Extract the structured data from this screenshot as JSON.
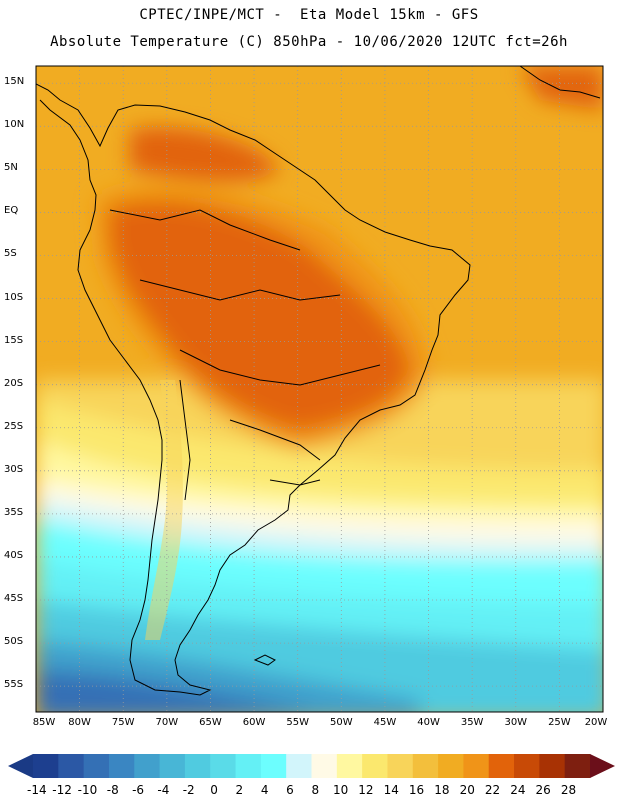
{
  "header": {
    "line1": "CPTEC/INPE/MCT -  Eta Model 15km - GFS",
    "line2": "Absolute Temperature (C) 850hPa - 10/06/2020 12UTC fct=26h"
  },
  "map": {
    "lat_labels": [
      "15N",
      "10N",
      "5N",
      "EQ",
      "5S",
      "10S",
      "15S",
      "20S",
      "25S",
      "30S",
      "35S",
      "40S",
      "45S",
      "50S",
      "55S"
    ],
    "lat_values": [
      15,
      10,
      5,
      0,
      -5,
      -10,
      -15,
      -20,
      -25,
      -30,
      -35,
      -40,
      -45,
      -50,
      -55
    ],
    "lon_labels": [
      "85W",
      "80W",
      "75W",
      "70W",
      "65W",
      "60W",
      "55W",
      "50W",
      "45W",
      "40W",
      "35W",
      "30W",
      "25W",
      "20W"
    ],
    "lon_values": [
      -85,
      -80,
      -75,
      -70,
      -65,
      -60,
      -55,
      -50,
      -45,
      -40,
      -35,
      -30,
      -25,
      -20
    ],
    "extent": {
      "lon_min": -85,
      "lon_max": -20,
      "lat_min": -58,
      "lat_max": 17
    }
  },
  "colorbar": {
    "labels": [
      "-14",
      "-12",
      "-10",
      "-8",
      "-6",
      "-4",
      "-2",
      "0",
      "2",
      "4",
      "6",
      "8",
      "10",
      "12",
      "14",
      "16",
      "18",
      "20",
      "22",
      "24",
      "26",
      "28"
    ],
    "colors": [
      "#1d3f8f",
      "#2b58a5",
      "#3470b5",
      "#3a86c2",
      "#41a0cc",
      "#48b6d6",
      "#50cbe0",
      "#5adbe8",
      "#64f0f5",
      "#6cfefe",
      "#d2f5fb",
      "#fffae6",
      "#fff8a0",
      "#fbe86e",
      "#f8d45a",
      "#f3bf3c",
      "#f1ac22",
      "#f09418",
      "#e2630a",
      "#c84a06",
      "#a83204",
      "#7e1f10"
    ],
    "low_color": "#1a3a85",
    "high_color": "#6b0f1a"
  }
}
